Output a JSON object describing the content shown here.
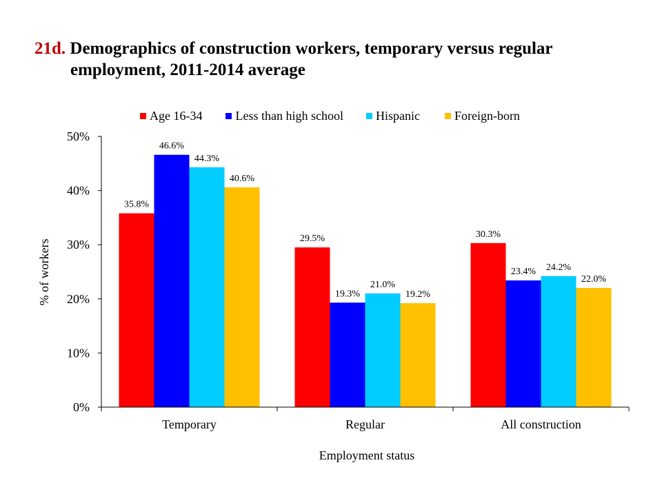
{
  "title": {
    "number": "21d.",
    "line1": "Demographics of construction workers, temporary versus regular",
    "line2": "employment, 2011-2014 average"
  },
  "chart_data": {
    "type": "bar",
    "categories": [
      "Temporary",
      "Regular",
      "All construction"
    ],
    "series": [
      {
        "name": "Age 16-34",
        "color": "#ff0000",
        "values": [
          35.8,
          29.5,
          30.3
        ],
        "labels": [
          "35.8%",
          "29.5%",
          "30.3%"
        ]
      },
      {
        "name": "Less than high school",
        "color": "#0000ff",
        "values": [
          46.6,
          19.3,
          23.4
        ],
        "labels": [
          "46.6%",
          "19.3%",
          "23.4%"
        ]
      },
      {
        "name": "Hispanic",
        "color": "#00ccff",
        "values": [
          44.3,
          21.0,
          24.2
        ],
        "labels": [
          "44.3%",
          "21.0%",
          "24.2%"
        ]
      },
      {
        "name": "Foreign-born",
        "color": "#ffc000",
        "values": [
          40.6,
          19.2,
          22.0
        ],
        "labels": [
          "40.6%",
          "19.2%",
          "22.0%"
        ]
      }
    ],
    "xlabel": "Employment  status",
    "ylabel": "% of workers",
    "ylim": [
      0,
      50
    ],
    "yticks": [
      0,
      10,
      20,
      30,
      40,
      50
    ],
    "ytick_labels": [
      "0%",
      "10%",
      "20%",
      "30%",
      "40%",
      "50%"
    ],
    "grid": false,
    "legend_position": "top"
  }
}
